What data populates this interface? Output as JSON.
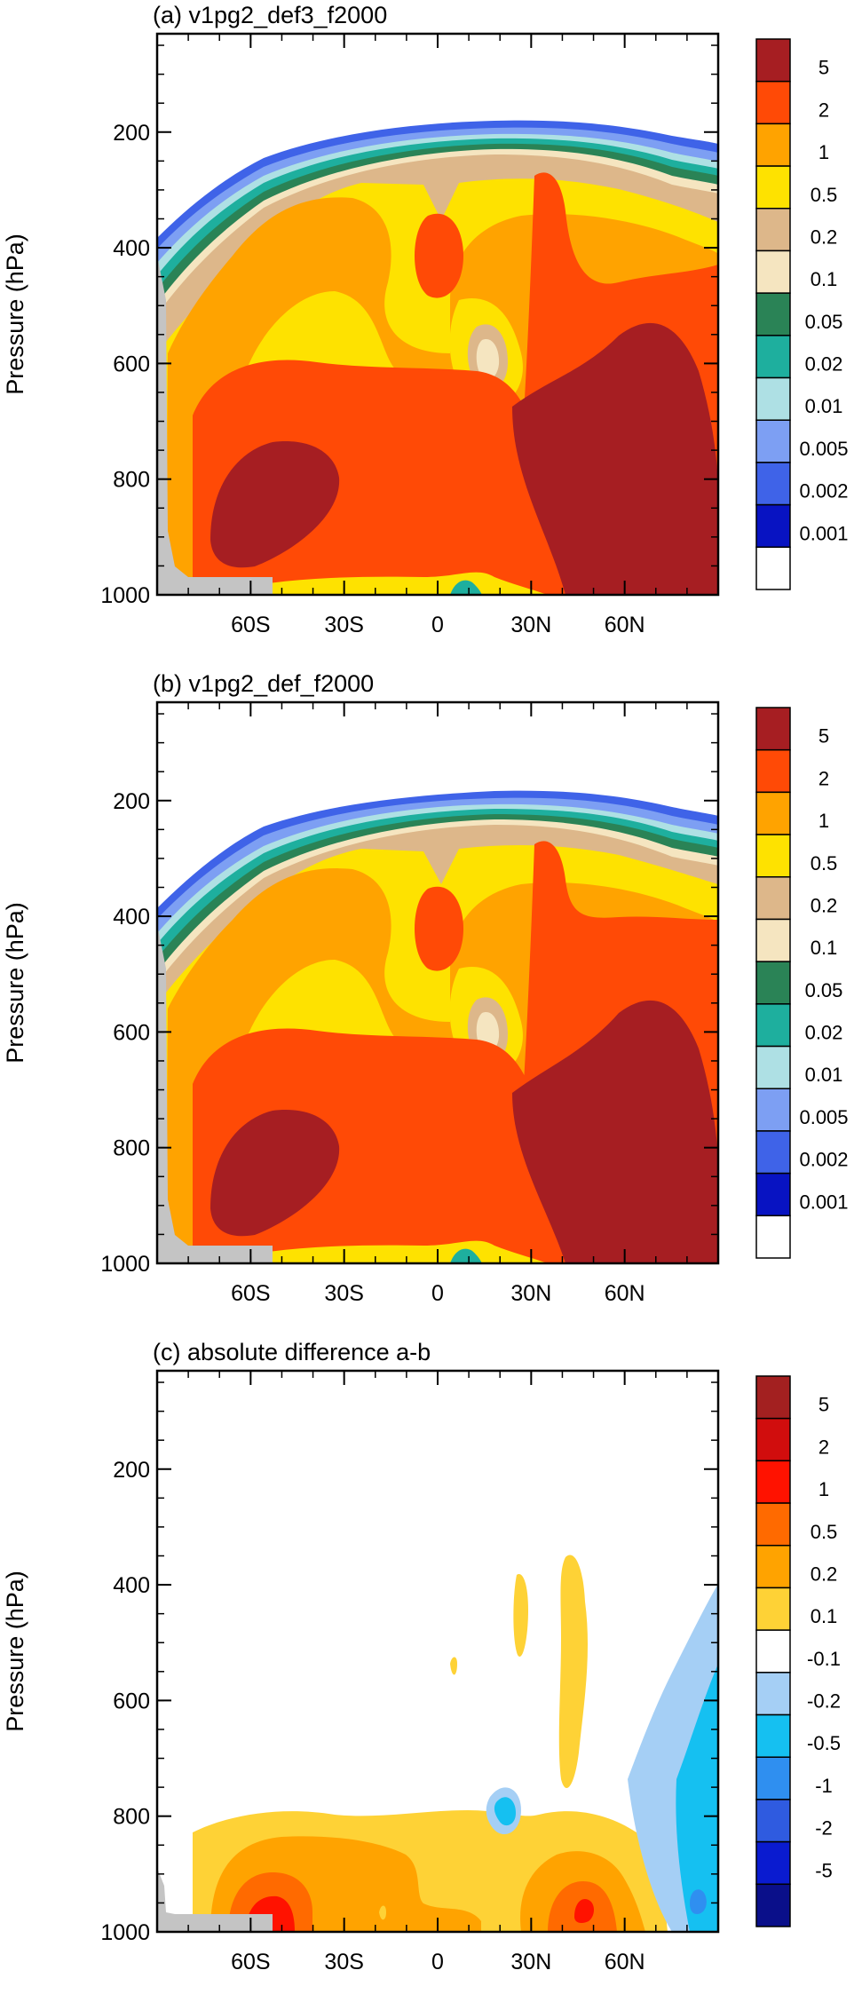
{
  "figure": {
    "shared": {
      "ylabel": "Pressure (hPa)",
      "yticks": [
        200,
        400,
        600,
        800,
        1000
      ],
      "xticks": [
        "60S",
        "30S",
        "0",
        "30N",
        "60N"
      ],
      "xtick_values": [
        -60,
        -30,
        0,
        30,
        60
      ],
      "xlim": [
        -90,
        90
      ],
      "ylim": [
        1000,
        30
      ],
      "y_reversed": true
    }
  },
  "chart_data": [
    {
      "type": "heatmap",
      "panel": "a",
      "title": "(a) v1pg2_def3_f2000",
      "xlabel": "",
      "ylabel": "Pressure (hPa)",
      "ylim": [
        1000,
        30
      ],
      "y_reversed": true,
      "xlim": [
        -90,
        90
      ],
      "colorbar": {
        "labels": [
          "5",
          "2",
          "1",
          "0.5",
          "0.2",
          "0.1",
          "0.05",
          "0.02",
          "0.01",
          "0.005",
          "0.002",
          "0.001"
        ],
        "colors": [
          "#a61e22",
          "#ff4a06",
          "#ffa300",
          "#fee200",
          "#ddb78a",
          "#f5e5c0",
          "#2a8356",
          "#1eaf9e",
          "#aee0e4",
          "#7d9ff3",
          "#3f63e8",
          "#0813c2",
          "#ffffff"
        ]
      }
    },
    {
      "type": "heatmap",
      "panel": "b",
      "title": "(b) v1pg2_def_f2000",
      "xlabel": "",
      "ylabel": "Pressure (hPa)",
      "ylim": [
        1000,
        30
      ],
      "y_reversed": true,
      "xlim": [
        -90,
        90
      ],
      "colorbar": {
        "labels": [
          "5",
          "2",
          "1",
          "0.5",
          "0.2",
          "0.1",
          "0.05",
          "0.02",
          "0.01",
          "0.005",
          "0.002",
          "0.001"
        ],
        "colors": [
          "#a61e22",
          "#ff4a06",
          "#ffa300",
          "#fee200",
          "#ddb78a",
          "#f5e5c0",
          "#2a8356",
          "#1eaf9e",
          "#aee0e4",
          "#7d9ff3",
          "#3f63e8",
          "#0813c2",
          "#ffffff"
        ]
      }
    },
    {
      "type": "heatmap",
      "panel": "c",
      "title": "(c) absolute difference a-b",
      "xlabel": "",
      "ylabel": "Pressure (hPa)",
      "ylim": [
        1000,
        30
      ],
      "y_reversed": true,
      "xlim": [
        -90,
        90
      ],
      "colorbar": {
        "labels": [
          "5",
          "2",
          "1",
          "0.5",
          "0.2",
          "0.1",
          "-0.1",
          "-0.2",
          "-0.5",
          "-1",
          "-2",
          "-5"
        ],
        "colors": [
          "#a32020",
          "#d10d0d",
          "#ff1200",
          "#ff6a00",
          "#ffa300",
          "#fed236",
          "#ffffff",
          "#a5cff5",
          "#15c0f1",
          "#2f8ff0",
          "#2f5be0",
          "#0a1bd0",
          "#0a0f8a"
        ]
      }
    }
  ]
}
